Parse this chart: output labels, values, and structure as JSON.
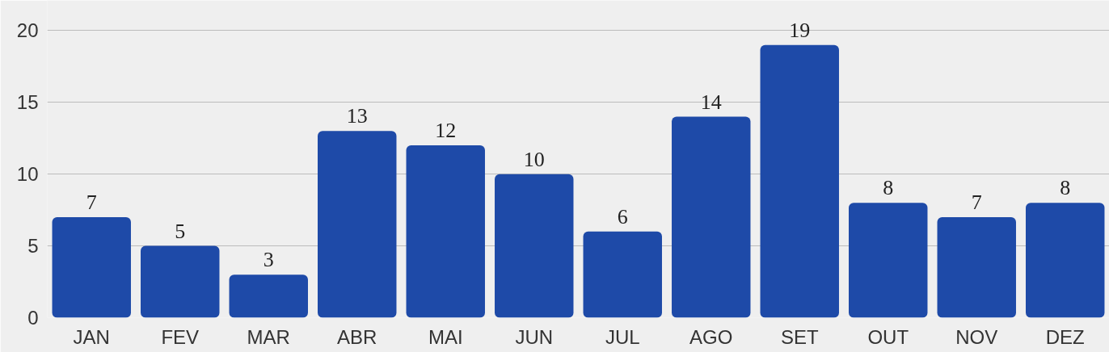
{
  "chart_data": {
    "type": "bar",
    "categories": [
      "JAN",
      "FEV",
      "MAR",
      "ABR",
      "MAI",
      "JUN",
      "JUL",
      "AGO",
      "SET",
      "OUT",
      "NOV",
      "DEZ"
    ],
    "values": [
      7,
      5,
      3,
      13,
      12,
      10,
      6,
      14,
      19,
      8,
      7,
      8
    ],
    "color": "#1e4aa8",
    "ylim": [
      0,
      22.1
    ],
    "yticks": [
      0,
      5,
      10,
      15,
      20
    ],
    "grid": "y",
    "data_labels": true
  }
}
